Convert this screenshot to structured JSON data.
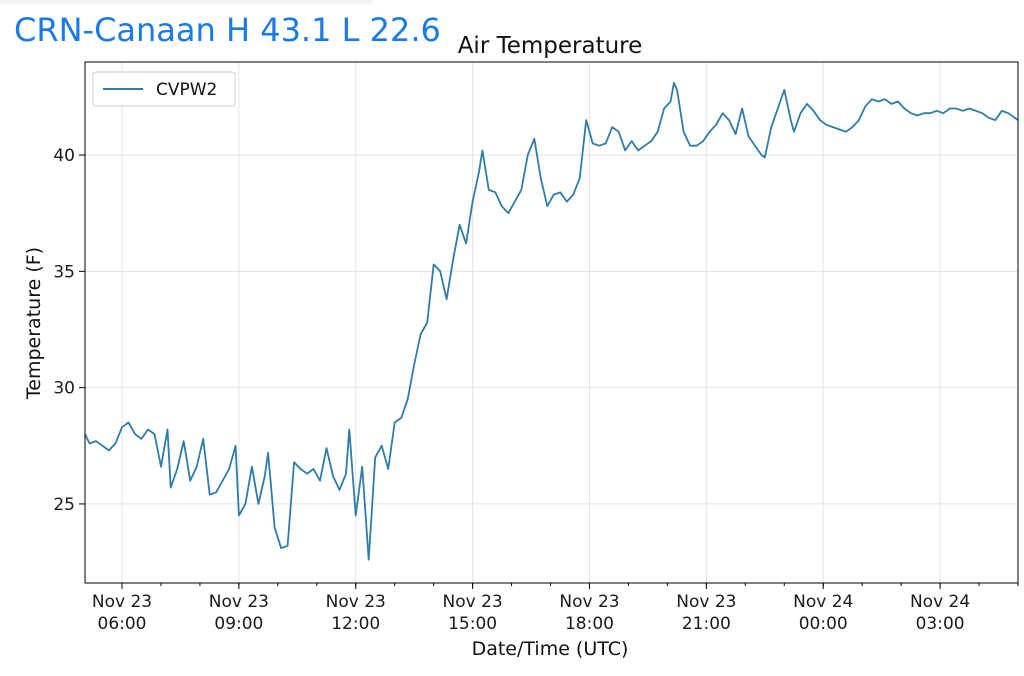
{
  "header": {
    "station_title": "CRN-Canaan H 43.1 L 22.6"
  },
  "colors": {
    "title": "#1a7ae8",
    "series": "#2e7ca8",
    "grid": "#e3e3e3"
  },
  "chart_data": {
    "type": "line",
    "title": "Air Temperature",
    "xlabel": "Date/Time (UTC)",
    "ylabel": "Temperature (F)",
    "ylim": [
      21.6,
      44.0
    ],
    "xlim": [
      "2021-11-23 05:03",
      "2021-11-24 05:00"
    ],
    "grid": true,
    "legend": "top-left",
    "yticks": [
      25,
      30,
      35,
      40
    ],
    "xticks": [
      {
        "t": "2021-11-23 06:00",
        "label1": "Nov 23",
        "label2": "06:00"
      },
      {
        "t": "2021-11-23 09:00",
        "label1": "Nov 23",
        "label2": "09:00"
      },
      {
        "t": "2021-11-23 12:00",
        "label1": "Nov 23",
        "label2": "12:00"
      },
      {
        "t": "2021-11-23 15:00",
        "label1": "Nov 23",
        "label2": "15:00"
      },
      {
        "t": "2021-11-23 18:00",
        "label1": "Nov 23",
        "label2": "18:00"
      },
      {
        "t": "2021-11-23 21:00",
        "label1": "Nov 23",
        "label2": "21:00"
      },
      {
        "t": "2021-11-24 00:00",
        "label1": "Nov 24",
        "label2": "00:00"
      },
      {
        "t": "2021-11-24 03:00",
        "label1": "Nov 24",
        "label2": "03:00"
      }
    ],
    "series": [
      {
        "name": "CVPW2",
        "points": [
          [
            "2021-11-23 05:03",
            28.0
          ],
          [
            "2021-11-23 05:10",
            27.6
          ],
          [
            "2021-11-23 05:20",
            27.7
          ],
          [
            "2021-11-23 05:30",
            27.5
          ],
          [
            "2021-11-23 05:40",
            27.3
          ],
          [
            "2021-11-23 05:50",
            27.6
          ],
          [
            "2021-11-23 06:00",
            28.3
          ],
          [
            "2021-11-23 06:10",
            28.5
          ],
          [
            "2021-11-23 06:20",
            28.0
          ],
          [
            "2021-11-23 06:30",
            27.8
          ],
          [
            "2021-11-23 06:40",
            28.2
          ],
          [
            "2021-11-23 06:50",
            28.0
          ],
          [
            "2021-11-23 07:00",
            26.6
          ],
          [
            "2021-11-23 07:10",
            28.2
          ],
          [
            "2021-11-23 07:15",
            25.7
          ],
          [
            "2021-11-23 07:25",
            26.5
          ],
          [
            "2021-11-23 07:35",
            27.7
          ],
          [
            "2021-11-23 07:45",
            26.0
          ],
          [
            "2021-11-23 07:55",
            26.6
          ],
          [
            "2021-11-23 08:05",
            27.8
          ],
          [
            "2021-11-23 08:15",
            25.4
          ],
          [
            "2021-11-23 08:25",
            25.5
          ],
          [
            "2021-11-23 08:35",
            26.0
          ],
          [
            "2021-11-23 08:45",
            26.5
          ],
          [
            "2021-11-23 08:55",
            27.5
          ],
          [
            "2021-11-23 09:00",
            24.5
          ],
          [
            "2021-11-23 09:10",
            25.0
          ],
          [
            "2021-11-23 09:20",
            26.6
          ],
          [
            "2021-11-23 09:30",
            25.0
          ],
          [
            "2021-11-23 09:40",
            26.2
          ],
          [
            "2021-11-23 09:45",
            27.2
          ],
          [
            "2021-11-23 09:55",
            24.0
          ],
          [
            "2021-11-23 10:05",
            23.1
          ],
          [
            "2021-11-23 10:15",
            23.2
          ],
          [
            "2021-11-23 10:25",
            26.8
          ],
          [
            "2021-11-23 10:35",
            26.5
          ],
          [
            "2021-11-23 10:45",
            26.3
          ],
          [
            "2021-11-23 10:55",
            26.5
          ],
          [
            "2021-11-23 11:05",
            26.0
          ],
          [
            "2021-11-23 11:15",
            27.4
          ],
          [
            "2021-11-23 11:25",
            26.2
          ],
          [
            "2021-11-23 11:35",
            25.6
          ],
          [
            "2021-11-23 11:45",
            26.3
          ],
          [
            "2021-11-23 11:50",
            28.2
          ],
          [
            "2021-11-23 12:00",
            24.5
          ],
          [
            "2021-11-23 12:10",
            26.6
          ],
          [
            "2021-11-23 12:20",
            22.6
          ],
          [
            "2021-11-23 12:30",
            27.0
          ],
          [
            "2021-11-23 12:40",
            27.5
          ],
          [
            "2021-11-23 12:50",
            26.5
          ],
          [
            "2021-11-23 13:00",
            28.5
          ],
          [
            "2021-11-23 13:10",
            28.7
          ],
          [
            "2021-11-23 13:20",
            29.5
          ],
          [
            "2021-11-23 13:30",
            31.0
          ],
          [
            "2021-11-23 13:40",
            32.3
          ],
          [
            "2021-11-23 13:50",
            32.8
          ],
          [
            "2021-11-23 14:00",
            35.3
          ],
          [
            "2021-11-23 14:10",
            35.0
          ],
          [
            "2021-11-23 14:20",
            33.8
          ],
          [
            "2021-11-23 14:30",
            35.5
          ],
          [
            "2021-11-23 14:40",
            37.0
          ],
          [
            "2021-11-23 14:50",
            36.2
          ],
          [
            "2021-11-23 15:00",
            38.0
          ],
          [
            "2021-11-23 15:10",
            39.3
          ],
          [
            "2021-11-23 15:15",
            40.2
          ],
          [
            "2021-11-23 15:25",
            38.5
          ],
          [
            "2021-11-23 15:35",
            38.4
          ],
          [
            "2021-11-23 15:45",
            37.8
          ],
          [
            "2021-11-23 15:55",
            37.5
          ],
          [
            "2021-11-23 16:05",
            38.0
          ],
          [
            "2021-11-23 16:15",
            38.5
          ],
          [
            "2021-11-23 16:25",
            40.0
          ],
          [
            "2021-11-23 16:35",
            40.7
          ],
          [
            "2021-11-23 16:45",
            39.0
          ],
          [
            "2021-11-23 16:55",
            37.8
          ],
          [
            "2021-11-23 17:05",
            38.3
          ],
          [
            "2021-11-23 17:15",
            38.4
          ],
          [
            "2021-11-23 17:25",
            38.0
          ],
          [
            "2021-11-23 17:35",
            38.3
          ],
          [
            "2021-11-23 17:45",
            39.0
          ],
          [
            "2021-11-23 17:55",
            41.5
          ],
          [
            "2021-11-23 18:05",
            40.5
          ],
          [
            "2021-11-23 18:15",
            40.4
          ],
          [
            "2021-11-23 18:25",
            40.5
          ],
          [
            "2021-11-23 18:35",
            41.2
          ],
          [
            "2021-11-23 18:45",
            41.0
          ],
          [
            "2021-11-23 18:55",
            40.2
          ],
          [
            "2021-11-23 19:05",
            40.6
          ],
          [
            "2021-11-23 19:15",
            40.2
          ],
          [
            "2021-11-23 19:25",
            40.4
          ],
          [
            "2021-11-23 19:35",
            40.6
          ],
          [
            "2021-11-23 19:45",
            41.0
          ],
          [
            "2021-11-23 19:55",
            42.0
          ],
          [
            "2021-11-23 20:05",
            42.3
          ],
          [
            "2021-11-23 20:10",
            43.1
          ],
          [
            "2021-11-23 20:15",
            42.8
          ],
          [
            "2021-11-23 20:25",
            41.0
          ],
          [
            "2021-11-23 20:35",
            40.4
          ],
          [
            "2021-11-23 20:45",
            40.4
          ],
          [
            "2021-11-23 20:55",
            40.6
          ],
          [
            "2021-11-23 21:05",
            41.0
          ],
          [
            "2021-11-23 21:15",
            41.3
          ],
          [
            "2021-11-23 21:25",
            41.8
          ],
          [
            "2021-11-23 21:35",
            41.5
          ],
          [
            "2021-11-23 21:45",
            40.9
          ],
          [
            "2021-11-23 21:55",
            42.0
          ],
          [
            "2021-11-23 22:05",
            40.8
          ],
          [
            "2021-11-23 22:15",
            40.4
          ],
          [
            "2021-11-23 22:25",
            40.0
          ],
          [
            "2021-11-23 22:30",
            39.9
          ],
          [
            "2021-11-23 22:40",
            41.2
          ],
          [
            "2021-11-23 22:50",
            42.0
          ],
          [
            "2021-11-23 22:55",
            42.4
          ],
          [
            "2021-11-23 23:00",
            42.8
          ],
          [
            "2021-11-23 23:10",
            41.5
          ],
          [
            "2021-11-23 23:15",
            41.0
          ],
          [
            "2021-11-23 23:25",
            41.8
          ],
          [
            "2021-11-23 23:35",
            42.2
          ],
          [
            "2021-11-23 23:45",
            41.9
          ],
          [
            "2021-11-23 23:55",
            41.5
          ],
          [
            "2021-11-24 00:05",
            41.3
          ],
          [
            "2021-11-24 00:15",
            41.2
          ],
          [
            "2021-11-24 00:25",
            41.1
          ],
          [
            "2021-11-24 00:35",
            41.0
          ],
          [
            "2021-11-24 00:45",
            41.2
          ],
          [
            "2021-11-24 00:55",
            41.5
          ],
          [
            "2021-11-24 01:05",
            42.1
          ],
          [
            "2021-11-24 01:15",
            42.4
          ],
          [
            "2021-11-24 01:25",
            42.3
          ],
          [
            "2021-11-24 01:35",
            42.4
          ],
          [
            "2021-11-24 01:45",
            42.2
          ],
          [
            "2021-11-24 01:55",
            42.3
          ],
          [
            "2021-11-24 02:05",
            42.0
          ],
          [
            "2021-11-24 02:15",
            41.8
          ],
          [
            "2021-11-24 02:25",
            41.7
          ],
          [
            "2021-11-24 02:35",
            41.8
          ],
          [
            "2021-11-24 02:45",
            41.8
          ],
          [
            "2021-11-24 02:55",
            41.9
          ],
          [
            "2021-11-24 03:05",
            41.8
          ],
          [
            "2021-11-24 03:15",
            42.0
          ],
          [
            "2021-11-24 03:25",
            42.0
          ],
          [
            "2021-11-24 03:35",
            41.9
          ],
          [
            "2021-11-24 03:45",
            42.0
          ],
          [
            "2021-11-24 03:55",
            41.9
          ],
          [
            "2021-11-24 04:05",
            41.8
          ],
          [
            "2021-11-24 04:15",
            41.6
          ],
          [
            "2021-11-24 04:25",
            41.5
          ],
          [
            "2021-11-24 04:35",
            41.9
          ],
          [
            "2021-11-24 04:45",
            41.8
          ],
          [
            "2021-11-24 05:00",
            41.5
          ]
        ]
      }
    ]
  }
}
